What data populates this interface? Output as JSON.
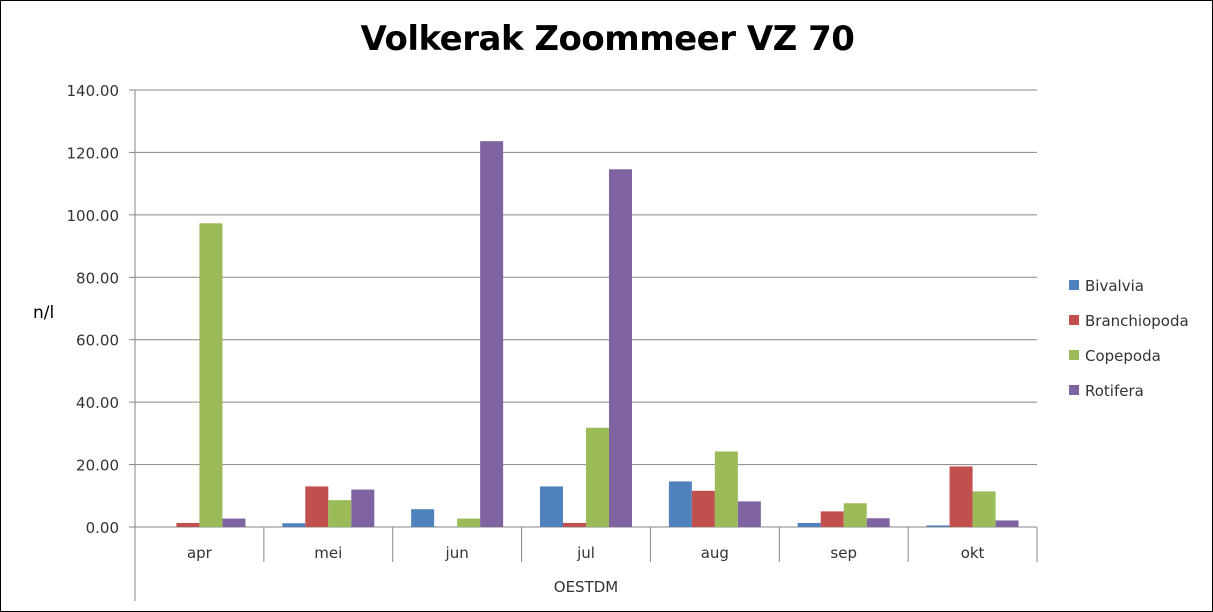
{
  "chart_data": {
    "type": "bar",
    "title": "Volkerak Zoommeer VZ 70",
    "xlabel": "OESTDM",
    "ylabel": "n/l",
    "ylim": [
      0,
      140
    ],
    "yticks": [
      "0.00",
      "20.00",
      "40.00",
      "60.00",
      "80.00",
      "100.00",
      "120.00",
      "140.00"
    ],
    "categories": [
      "apr",
      "mei",
      "jun",
      "jul",
      "aug",
      "sep",
      "okt"
    ],
    "series": [
      {
        "name": "Bivalvia",
        "color": "#4F81BD",
        "values": [
          0,
          1.2,
          5.7,
          13.0,
          14.6,
          1.3,
          0.5
        ]
      },
      {
        "name": "Branchiopoda",
        "color": "#C0504D",
        "values": [
          1.3,
          13.0,
          0,
          1.3,
          11.6,
          5.0,
          19.4
        ]
      },
      {
        "name": "Copepoda",
        "color": "#9BBB59",
        "values": [
          97.3,
          8.6,
          2.7,
          31.8,
          24.2,
          7.6,
          11.4
        ]
      },
      {
        "name": "Rotifera",
        "color": "#8064A2",
        "values": [
          2.7,
          12.0,
          123.6,
          114.6,
          8.2,
          2.8,
          2.1
        ]
      }
    ],
    "legend_position": "right",
    "grid": true
  }
}
